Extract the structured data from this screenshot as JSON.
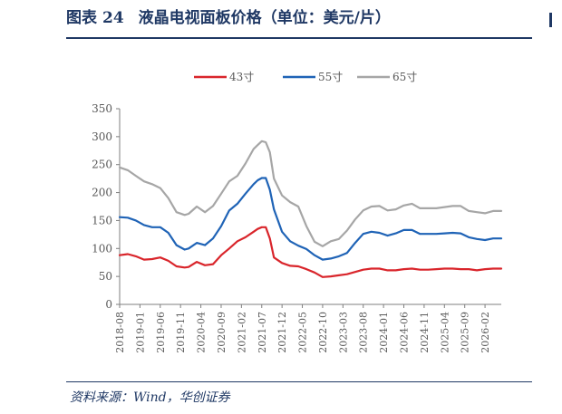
{
  "figure": {
    "label": "图表",
    "number": "24",
    "title": "液晶电视面板价格（单位：美元/片）",
    "source": "资料来源：Wind，华创证券"
  },
  "chart_data": {
    "type": "line",
    "ylim": [
      0,
      350
    ],
    "yticks": [
      0,
      50,
      100,
      150,
      200,
      250,
      300,
      350
    ],
    "xticks": [
      "2018-08",
      "2019-01",
      "2019-06",
      "2019-11",
      "2020-04",
      "2020-09",
      "2021-02",
      "2021-07",
      "2021-12",
      "2022-05",
      "2022-10",
      "2023-03",
      "2023-08",
      "2024-01",
      "2024-06",
      "2024-11",
      "2025-04",
      "2025-09",
      "2026-02"
    ],
    "x_start": "2018-08",
    "x_end": "2026-06",
    "grid": false,
    "legend": "top-center",
    "series": [
      {
        "name": "43寸",
        "color": "#d9252b",
        "x": [
          "2018-08",
          "2018-10",
          "2018-12",
          "2019-02",
          "2019-04",
          "2019-06",
          "2019-08",
          "2019-10",
          "2019-12",
          "2020-01",
          "2020-03",
          "2020-05",
          "2020-07",
          "2020-09",
          "2020-11",
          "2021-01",
          "2021-03",
          "2021-05",
          "2021-06",
          "2021-07",
          "2021-08",
          "2021-09",
          "2021-10",
          "2021-12",
          "2022-02",
          "2022-04",
          "2022-06",
          "2022-08",
          "2022-10",
          "2022-12",
          "2023-02",
          "2023-04",
          "2023-06",
          "2023-08",
          "2023-10",
          "2023-12",
          "2024-02",
          "2024-04",
          "2024-06",
          "2024-08",
          "2024-10",
          "2024-12",
          "2025-02",
          "2025-04",
          "2025-06",
          "2025-08",
          "2025-10",
          "2025-12",
          "2026-02",
          "2026-04",
          "2026-06"
        ],
        "values": [
          88,
          90,
          86,
          80,
          81,
          84,
          78,
          68,
          66,
          67,
          76,
          70,
          72,
          88,
          100,
          113,
          120,
          130,
          135,
          138,
          138,
          118,
          84,
          74,
          69,
          68,
          63,
          57,
          49,
          50,
          52,
          54,
          58,
          62,
          64,
          64,
          61,
          61,
          63,
          64,
          62,
          62,
          63,
          64,
          64,
          63,
          63,
          61,
          63,
          64,
          64
        ]
      },
      {
        "name": "55寸",
        "color": "#1f63b6",
        "x": [
          "2018-08",
          "2018-10",
          "2018-12",
          "2019-02",
          "2019-04",
          "2019-06",
          "2019-08",
          "2019-10",
          "2019-12",
          "2020-01",
          "2020-03",
          "2020-05",
          "2020-07",
          "2020-09",
          "2020-11",
          "2021-01",
          "2021-03",
          "2021-05",
          "2021-06",
          "2021-07",
          "2021-08",
          "2021-09",
          "2021-10",
          "2021-12",
          "2022-02",
          "2022-04",
          "2022-06",
          "2022-08",
          "2022-10",
          "2022-12",
          "2023-02",
          "2023-04",
          "2023-06",
          "2023-08",
          "2023-10",
          "2023-12",
          "2024-02",
          "2024-04",
          "2024-06",
          "2024-08",
          "2024-10",
          "2024-12",
          "2025-02",
          "2025-04",
          "2025-06",
          "2025-08",
          "2025-10",
          "2025-12",
          "2026-02",
          "2026-04",
          "2026-06"
        ],
        "values": [
          156,
          155,
          150,
          142,
          138,
          138,
          128,
          106,
          98,
          100,
          110,
          106,
          118,
          140,
          168,
          180,
          198,
          215,
          222,
          226,
          226,
          205,
          170,
          130,
          113,
          105,
          99,
          88,
          80,
          82,
          86,
          92,
          110,
          126,
          130,
          128,
          123,
          127,
          133,
          133,
          126,
          126,
          126,
          127,
          128,
          127,
          120,
          117,
          115,
          118,
          118
        ]
      },
      {
        "name": "65寸",
        "color": "#a6a6a6",
        "x": [
          "2018-08",
          "2018-10",
          "2018-12",
          "2019-02",
          "2019-04",
          "2019-06",
          "2019-08",
          "2019-10",
          "2019-12",
          "2020-01",
          "2020-03",
          "2020-05",
          "2020-07",
          "2020-09",
          "2020-11",
          "2021-01",
          "2021-03",
          "2021-05",
          "2021-06",
          "2021-07",
          "2021-08",
          "2021-09",
          "2021-10",
          "2021-12",
          "2022-02",
          "2022-04",
          "2022-06",
          "2022-08",
          "2022-10",
          "2022-12",
          "2023-02",
          "2023-04",
          "2023-06",
          "2023-08",
          "2023-10",
          "2023-12",
          "2024-02",
          "2024-04",
          "2024-06",
          "2024-08",
          "2024-10",
          "2024-12",
          "2025-02",
          "2025-04",
          "2025-06",
          "2025-08",
          "2025-10",
          "2025-12",
          "2026-02",
          "2026-04",
          "2026-06"
        ],
        "values": [
          245,
          240,
          230,
          220,
          215,
          208,
          190,
          165,
          160,
          162,
          175,
          165,
          176,
          198,
          220,
          230,
          252,
          278,
          285,
          292,
          290,
          272,
          225,
          195,
          183,
          175,
          140,
          112,
          104,
          113,
          117,
          132,
          152,
          168,
          175,
          176,
          168,
          170,
          177,
          180,
          172,
          172,
          172,
          174,
          176,
          176,
          167,
          165,
          163,
          167,
          167
        ]
      }
    ]
  }
}
